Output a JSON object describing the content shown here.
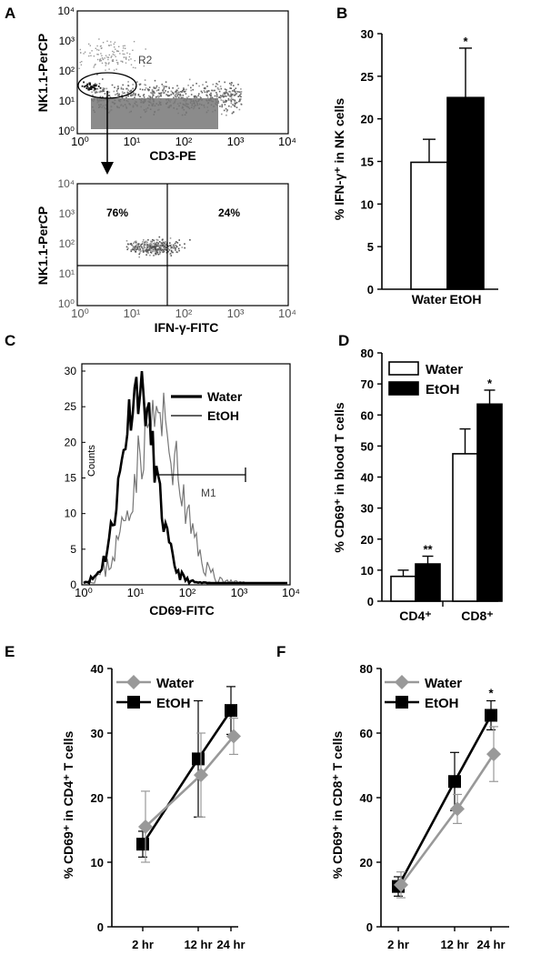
{
  "panels": {
    "A": "A",
    "B": "B",
    "C": "C",
    "D": "D",
    "E": "E",
    "F": "F"
  },
  "chart_data": [
    {
      "panel": "A-top",
      "type": "scatter",
      "xlabel": "CD3-PE",
      "ylabel": "NK1.1-PerCP",
      "gate_label": "R2",
      "xticks": [
        "10⁰",
        "10¹",
        "10²",
        "10³",
        "10⁴"
      ],
      "yticks": [
        "10⁰",
        "10¹",
        "10²",
        "10³",
        "10⁴"
      ],
      "scale": "log"
    },
    {
      "panel": "A-bottom",
      "type": "scatter",
      "xlabel": "IFN-γ-FITC",
      "ylabel": "NK1.1-PerCP",
      "quadrants": [
        "76%",
        "24%"
      ],
      "xticks": [
        "10⁰",
        "10¹",
        "10²",
        "10³",
        "10⁴"
      ],
      "yticks": [
        "10⁰",
        "10¹",
        "10²",
        "10³",
        "10⁴"
      ],
      "scale": "log"
    },
    {
      "panel": "B",
      "type": "bar",
      "categories": [
        "Water",
        "EtOH"
      ],
      "values": [
        14.9,
        22.5
      ],
      "errors": [
        2.7,
        5.8
      ],
      "colors": [
        "#ffffff",
        "#000000"
      ],
      "annotations": [
        "",
        "*"
      ],
      "ylabel": "% IFN-γ⁺ in NK cells",
      "ylim": [
        0,
        30
      ],
      "yticks": [
        0,
        5,
        10,
        15,
        20,
        25,
        30
      ]
    },
    {
      "panel": "C",
      "type": "line",
      "title": "histogram",
      "xlabel": "CD69-FITC",
      "ylabel": "Counts",
      "gate_label": "M1",
      "legend": [
        "Water",
        "EtOH"
      ],
      "xticks": [
        "10⁰",
        "10¹",
        "10²",
        "10³",
        "10⁴"
      ],
      "yticks": [
        0,
        5,
        10,
        15,
        20,
        25,
        30
      ],
      "ylim": [
        0,
        30
      ]
    },
    {
      "panel": "D",
      "type": "bar",
      "categories": [
        "CD4⁺",
        "CD8⁺"
      ],
      "series": [
        {
          "name": "Water",
          "values": [
            8.0,
            47.5
          ],
          "errors": [
            2.0,
            8.0
          ],
          "color": "#ffffff"
        },
        {
          "name": "EtOH",
          "values": [
            12.0,
            63.5
          ],
          "errors": [
            2.5,
            4.5
          ],
          "color": "#000000"
        }
      ],
      "annotations": [
        "**",
        "*"
      ],
      "ylabel": "% CD69⁺ in blood T cells",
      "ylim": [
        0,
        80
      ],
      "yticks": [
        0,
        10,
        20,
        30,
        40,
        50,
        60,
        70,
        80
      ]
    },
    {
      "panel": "E",
      "type": "line",
      "x": [
        "2 hr",
        "12 hr",
        "24 hr"
      ],
      "series": [
        {
          "name": "Water",
          "values": [
            15.5,
            23.5,
            29.5
          ],
          "errors": [
            5.5,
            6.5,
            2.8
          ],
          "color": "#999999"
        },
        {
          "name": "EtOH",
          "values": [
            12.8,
            26.0,
            33.5
          ],
          "errors": [
            2.0,
            9.0,
            3.7
          ],
          "color": "#000000"
        }
      ],
      "ylabel": "% CD69⁺ in CD4⁺ T cells",
      "ylim": [
        0,
        40
      ],
      "yticks": [
        0,
        10,
        20,
        30,
        40
      ]
    },
    {
      "panel": "F",
      "type": "line",
      "x": [
        "2 hr",
        "12 hr",
        "24 hr"
      ],
      "series": [
        {
          "name": "Water",
          "values": [
            13.0,
            36.5,
            53.5
          ],
          "errors": [
            4.0,
            4.5,
            8.5
          ],
          "color": "#999999"
        },
        {
          "name": "EtOH",
          "values": [
            12.5,
            45.0,
            65.5
          ],
          "errors": [
            3.0,
            9.0,
            4.5
          ],
          "color": "#000000"
        }
      ],
      "annotations": [
        "",
        "",
        "*"
      ],
      "ylabel": "% CD69⁺ in CD8⁺ T cells",
      "ylim": [
        0,
        80
      ],
      "yticks": [
        0,
        20,
        40,
        60,
        80
      ]
    }
  ]
}
